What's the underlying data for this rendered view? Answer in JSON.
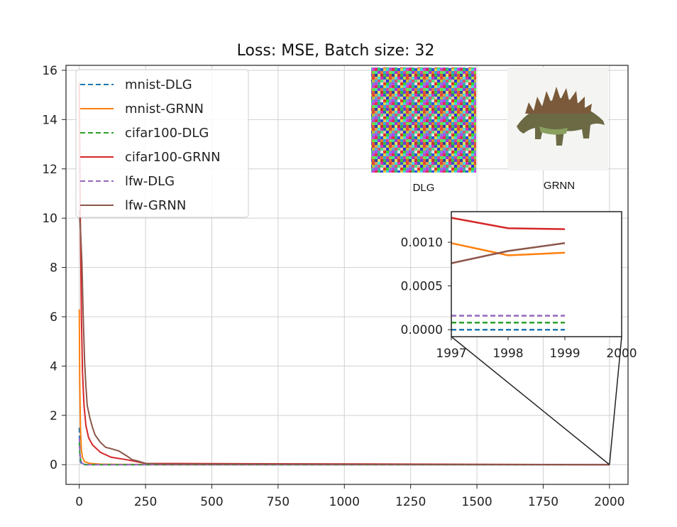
{
  "chart_data": {
    "type": "line",
    "title": "Loss: MSE, Batch size: 32",
    "xlabel": "",
    "ylabel": "",
    "xlim": [
      -50,
      2070
    ],
    "ylim": [
      -0.8,
      16.2
    ],
    "xticks": [
      0,
      250,
      500,
      750,
      1000,
      1250,
      1500,
      1750,
      2000
    ],
    "yticks": [
      0,
      2,
      4,
      6,
      8,
      10,
      12,
      14,
      16
    ],
    "grid": true,
    "legend": "top-left",
    "series": [
      {
        "name": "mnist-DLG",
        "color": "#1f77b4",
        "dash": true,
        "x": [
          0,
          2,
          5,
          10,
          20,
          2000
        ],
        "y": [
          1.5,
          0.5,
          0.1,
          0.02,
          0.0,
          0.0
        ]
      },
      {
        "name": "mnist-GRNN",
        "color": "#ff7f0e",
        "dash": false,
        "x": [
          0,
          2,
          5,
          8,
          12,
          20,
          40,
          80,
          150,
          2000
        ],
        "y": [
          6.3,
          3.2,
          1.4,
          0.6,
          0.3,
          0.12,
          0.05,
          0.02,
          0.01,
          0.0
        ]
      },
      {
        "name": "cifar100-DLG",
        "color": "#2ca02c",
        "dash": true,
        "x": [
          0,
          3,
          8,
          15,
          30,
          2000
        ],
        "y": [
          0.9,
          0.3,
          0.08,
          0.02,
          0.0,
          0.0
        ]
      },
      {
        "name": "cifar100-GRNN",
        "color": "#d62728",
        "dash": false,
        "x": [
          0,
          4,
          8,
          12,
          18,
          25,
          35,
          50,
          80,
          120,
          180,
          250,
          2000
        ],
        "y": [
          15.5,
          10.0,
          6.0,
          3.8,
          2.4,
          1.6,
          1.1,
          0.8,
          0.5,
          0.3,
          0.2,
          0.05,
          0.0
        ]
      },
      {
        "name": "lfw-DLG",
        "color": "#9467bd",
        "dash": true,
        "x": [
          0,
          3,
          8,
          15,
          30,
          2000
        ],
        "y": [
          1.1,
          0.4,
          0.1,
          0.03,
          0.0,
          0.0
        ]
      },
      {
        "name": "lfw-GRNN",
        "color": "#8c564b",
        "dash": false,
        "x": [
          0,
          5,
          10,
          15,
          20,
          25,
          30,
          40,
          50,
          60,
          80,
          100,
          120,
          150,
          180,
          200,
          220,
          250,
          300,
          2000
        ],
        "y": [
          10.3,
          9.5,
          8.2,
          6.0,
          4.2,
          3.2,
          2.4,
          1.9,
          1.5,
          1.2,
          0.9,
          0.7,
          0.65,
          0.55,
          0.35,
          0.2,
          0.15,
          0.05,
          0.02,
          0.0
        ]
      }
    ],
    "inset": {
      "xlim": [
        1997,
        2000
      ],
      "ylim": [
        -8e-05,
        0.00135
      ],
      "xticks": [
        1997,
        1998,
        1999,
        2000
      ],
      "yticks": [
        0.0,
        0.0005,
        0.001
      ],
      "yticklabels": [
        "0.0000",
        "0.0005",
        "0.0010"
      ],
      "series": [
        {
          "name": "mnist-DLG",
          "x": [
            1997,
            1998,
            1999
          ],
          "y": [
            0.0,
            0.0,
            0.0
          ]
        },
        {
          "name": "mnist-GRNN",
          "x": [
            1997,
            1998,
            1999
          ],
          "y": [
            0.00099,
            0.00085,
            0.00088
          ]
        },
        {
          "name": "cifar100-DLG",
          "x": [
            1997,
            1998,
            1999
          ],
          "y": [
            8e-05,
            8e-05,
            8e-05
          ]
        },
        {
          "name": "cifar100-GRNN",
          "x": [
            1997,
            1998,
            1999
          ],
          "y": [
            0.00128,
            0.00116,
            0.00115
          ]
        },
        {
          "name": "lfw-DLG",
          "x": [
            1997,
            1998,
            1999
          ],
          "y": [
            0.00016,
            0.00016,
            0.00016
          ]
        },
        {
          "name": "lfw-GRNN",
          "x": [
            1997,
            1998,
            1999
          ],
          "y": [
            0.00076,
            0.0009,
            0.00099
          ]
        }
      ]
    },
    "images": [
      {
        "caption": "DLG",
        "kind": "noise"
      },
      {
        "caption": "GRNN",
        "kind": "stegosaurus"
      }
    ]
  }
}
